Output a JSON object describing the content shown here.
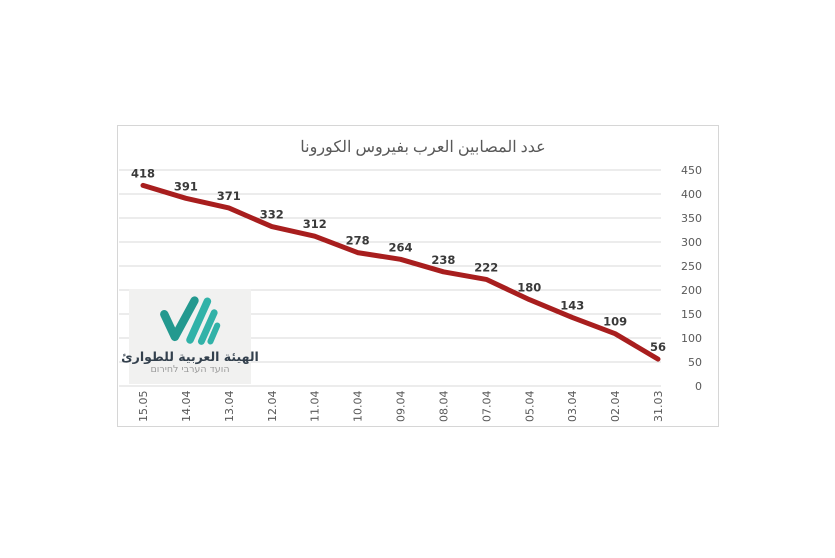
{
  "chart_data": {
    "type": "line",
    "title": "عدد المصابين العرب بفيروس الكورونا",
    "categories": [
      "15.05",
      "14.04",
      "13.04",
      "12.04",
      "11.04",
      "10.04",
      "09.04",
      "08.04",
      "07.04",
      "05.04",
      "03.04",
      "02.04",
      "31.03"
    ],
    "values": [
      418,
      391,
      371,
      332,
      312,
      278,
      264,
      238,
      222,
      180,
      143,
      109,
      56
    ],
    "y_ticks": [
      450,
      400,
      350,
      300,
      250,
      200,
      150,
      100,
      50,
      0
    ],
    "ylim": [
      0,
      450
    ],
    "y_axis_side": "right",
    "grid": true,
    "legend": "none",
    "data_labels": true,
    "x_label_rotation": -90,
    "line_color": "#a81e1e",
    "grid_color": "#d9d9d9",
    "tick_color": "#595959",
    "data_label_color": "#3a3a3a"
  },
  "logo": {
    "arabic_name": "الهيئة العربية للطوارئ",
    "hebrew_name": "הועד הערבי לחירום",
    "background": "#f1f1f0",
    "check_color": "#23998f",
    "slash_color": "#31b2a8"
  }
}
